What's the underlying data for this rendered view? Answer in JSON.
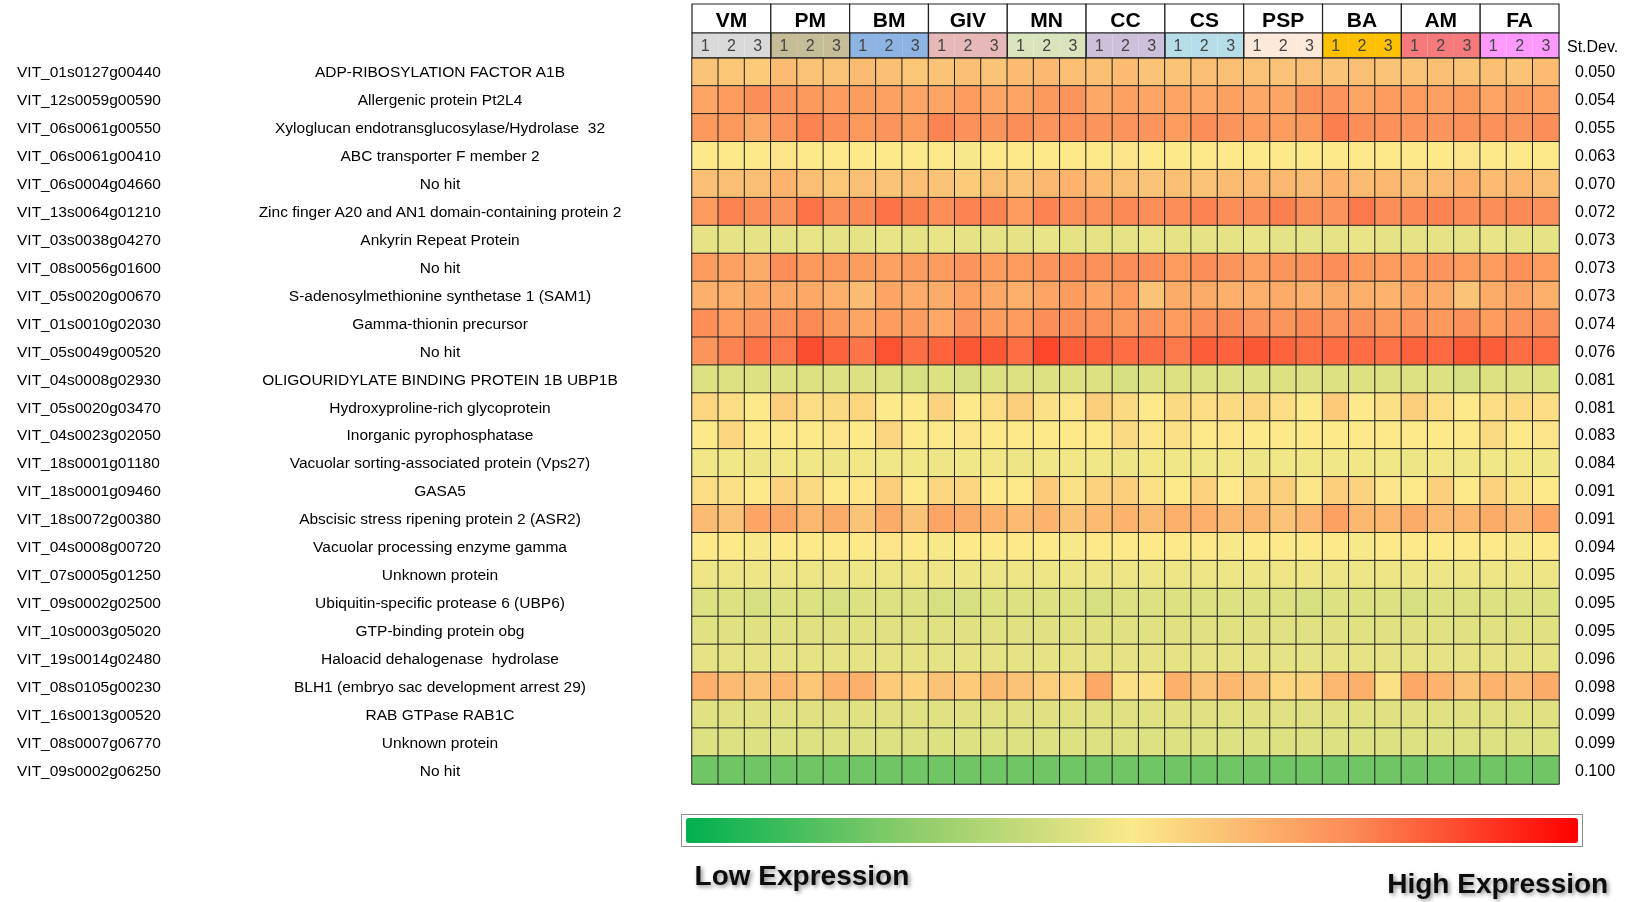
{
  "chart_data": {
    "type": "heatmap",
    "categories": [
      "1",
      "2",
      "3",
      "1",
      "2",
      "3",
      "1",
      "2",
      "3",
      "1",
      "2",
      "3",
      "1",
      "2",
      "3",
      "1",
      "2",
      "3",
      "1",
      "2",
      "3",
      "1",
      "2",
      "3",
      "1",
      "2",
      "3",
      "1",
      "2",
      "3",
      "1",
      "2",
      "3"
    ],
    "y_categories": [
      "ADP-RIBOSYLATION FACTOR A1B",
      "Allergenic protein Pt2L4",
      "Xyloglucan endotransglucosylase/Hydrolase  32",
      "ABC transporter F member 2",
      "No hit",
      "Zinc finger A20 and AN1 domain-containing protein 2",
      "Ankyrin Repeat Protein",
      "No hit",
      "S-adenosylmethionine synthetase 1 (SAM1)",
      "Gamma-thionin precursor",
      "No hit",
      "OLIGOURIDYLATE BINDING PROTEIN 1B UBP1B",
      "Hydroxyproline-rich glycoprotein",
      "Inorganic pyrophosphatase",
      "Vacuolar sorting-associated protein (Vps27)",
      "GASA5",
      "Abscisic stress ripening protein 2 (ASR2)",
      "Vacuolar processing enzyme gamma",
      "Unknown protein",
      "Ubiquitin-specific protease 6 (UBP6)",
      "GTP-binding protein obg",
      "Haloacid dehalogenase  hydrolase",
      "BLH1 (embryo sac development arrest 29)",
      "RAB GTPase RAB1C",
      "Unknown protein",
      "No hit"
    ],
    "y2_categories": [
      "0.050",
      "0.054",
      "0.055",
      "0.063",
      "0.070",
      "0.072",
      "0.073",
      "0.073",
      "0.073",
      "0.074",
      "0.076",
      "0.081",
      "0.081",
      "0.083",
      "0.084",
      "0.091",
      "0.091",
      "0.094",
      "0.095",
      "0.095",
      "0.095",
      "0.096",
      "0.098",
      "0.099",
      "0.099",
      "0.100"
    ],
    "y2label": "St.Dev.",
    "annotations": [
      "VM",
      "PM",
      "BM",
      "GIV",
      "MN",
      "CC",
      "CS",
      "PSP",
      "BA",
      "AM",
      "FA",
      "VIT_01s0127g00440",
      "VIT_12s0059g00590",
      "VIT_06s0061g00550",
      "VIT_06s0061g00410",
      "VIT_06s0004g04660",
      "VIT_13s0064g01210",
      "VIT_03s0038g04270",
      "VIT_08s0056g01600",
      "VIT_05s0020g00670",
      "VIT_01s0010g02030",
      "VIT_05s0049g00520",
      "VIT_04s0008g02930",
      "VIT_05s0020g03470",
      "VIT_04s0023g02050",
      "VIT_18s0001g01180",
      "VIT_18s0001g09460",
      "VIT_18s0072g00380",
      "VIT_04s0008g00720",
      "VIT_07s0005g01250",
      "VIT_09s0002g02500",
      "VIT_10s0003g05020",
      "VIT_19s0014g02480",
      "VIT_08s0105g00230",
      "VIT_16s0013g00520",
      "VIT_08s0007g06770",
      "VIT_09s0002g06250"
    ],
    "clim": [
      0,
      1
    ],
    "cticks": [
      {
        "value": 0.13,
        "label": "Low Expression"
      },
      {
        "value": 0.91,
        "label": "High Expression"
      }
    ],
    "cells": [
      [
        0.6,
        0.59,
        0.58,
        0.62,
        0.6,
        0.6,
        0.62,
        0.61,
        0.59,
        0.6,
        0.61,
        0.6,
        0.62,
        0.63,
        0.61,
        0.61,
        0.62,
        0.6,
        0.6,
        0.61,
        0.61,
        0.6,
        0.6,
        0.61,
        0.6,
        0.61,
        0.6,
        0.6,
        0.61,
        0.6,
        0.61,
        0.6,
        0.62
      ],
      [
        0.68,
        0.7,
        0.74,
        0.72,
        0.71,
        0.7,
        0.7,
        0.69,
        0.68,
        0.68,
        0.7,
        0.68,
        0.68,
        0.71,
        0.72,
        0.67,
        0.69,
        0.68,
        0.68,
        0.67,
        0.69,
        0.67,
        0.68,
        0.73,
        0.72,
        0.68,
        0.7,
        0.7,
        0.69,
        0.71,
        0.68,
        0.7,
        0.69
      ],
      [
        0.71,
        0.71,
        0.67,
        0.72,
        0.76,
        0.74,
        0.71,
        0.72,
        0.7,
        0.76,
        0.73,
        0.72,
        0.74,
        0.72,
        0.73,
        0.72,
        0.72,
        0.72,
        0.7,
        0.74,
        0.72,
        0.7,
        0.7,
        0.71,
        0.77,
        0.74,
        0.73,
        0.72,
        0.72,
        0.73,
        0.73,
        0.72,
        0.74
      ],
      [
        0.5,
        0.5,
        0.5,
        0.51,
        0.5,
        0.5,
        0.5,
        0.5,
        0.5,
        0.5,
        0.49,
        0.5,
        0.5,
        0.5,
        0.5,
        0.5,
        0.51,
        0.5,
        0.5,
        0.5,
        0.5,
        0.5,
        0.5,
        0.5,
        0.5,
        0.5,
        0.5,
        0.5,
        0.5,
        0.51,
        0.5,
        0.5,
        0.5
      ],
      [
        0.61,
        0.61,
        0.61,
        0.64,
        0.61,
        0.59,
        0.61,
        0.6,
        0.61,
        0.6,
        0.58,
        0.61,
        0.6,
        0.63,
        0.64,
        0.62,
        0.61,
        0.6,
        0.61,
        0.6,
        0.62,
        0.62,
        0.63,
        0.62,
        0.64,
        0.62,
        0.63,
        0.61,
        0.62,
        0.64,
        0.62,
        0.63,
        0.61
      ],
      [
        0.7,
        0.76,
        0.74,
        0.72,
        0.79,
        0.74,
        0.75,
        0.79,
        0.77,
        0.74,
        0.76,
        0.76,
        0.7,
        0.76,
        0.73,
        0.73,
        0.75,
        0.74,
        0.74,
        0.76,
        0.74,
        0.74,
        0.77,
        0.74,
        0.72,
        0.78,
        0.74,
        0.75,
        0.76,
        0.74,
        0.74,
        0.75,
        0.73
      ],
      [
        0.45,
        0.45,
        0.45,
        0.45,
        0.46,
        0.45,
        0.45,
        0.46,
        0.45,
        0.46,
        0.45,
        0.45,
        0.45,
        0.46,
        0.45,
        0.45,
        0.45,
        0.46,
        0.45,
        0.45,
        0.45,
        0.46,
        0.45,
        0.45,
        0.45,
        0.46,
        0.45,
        0.45,
        0.45,
        0.45,
        0.46,
        0.45,
        0.45
      ],
      [
        0.7,
        0.69,
        0.66,
        0.74,
        0.71,
        0.71,
        0.7,
        0.69,
        0.7,
        0.7,
        0.72,
        0.7,
        0.7,
        0.72,
        0.74,
        0.73,
        0.74,
        0.74,
        0.7,
        0.74,
        0.72,
        0.69,
        0.72,
        0.73,
        0.74,
        0.71,
        0.7,
        0.7,
        0.72,
        0.7,
        0.7,
        0.73,
        0.7
      ],
      [
        0.65,
        0.65,
        0.67,
        0.67,
        0.67,
        0.65,
        0.62,
        0.68,
        0.66,
        0.66,
        0.69,
        0.67,
        0.65,
        0.68,
        0.7,
        0.68,
        0.7,
        0.6,
        0.66,
        0.66,
        0.65,
        0.65,
        0.66,
        0.65,
        0.66,
        0.65,
        0.64,
        0.67,
        0.66,
        0.6,
        0.66,
        0.68,
        0.65
      ],
      [
        0.74,
        0.7,
        0.72,
        0.73,
        0.75,
        0.71,
        0.68,
        0.7,
        0.7,
        0.67,
        0.72,
        0.7,
        0.7,
        0.74,
        0.74,
        0.73,
        0.71,
        0.72,
        0.7,
        0.74,
        0.75,
        0.72,
        0.72,
        0.75,
        0.72,
        0.73,
        0.71,
        0.72,
        0.71,
        0.73,
        0.7,
        0.72,
        0.73
      ],
      [
        0.72,
        0.76,
        0.79,
        0.78,
        0.86,
        0.82,
        0.79,
        0.85,
        0.8,
        0.82,
        0.84,
        0.84,
        0.8,
        0.87,
        0.83,
        0.82,
        0.8,
        0.8,
        0.78,
        0.83,
        0.82,
        0.84,
        0.82,
        0.8,
        0.8,
        0.8,
        0.79,
        0.82,
        0.81,
        0.84,
        0.83,
        0.8,
        0.8
      ],
      [
        0.43,
        0.43,
        0.43,
        0.43,
        0.43,
        0.43,
        0.43,
        0.43,
        0.42,
        0.43,
        0.42,
        0.43,
        0.43,
        0.43,
        0.43,
        0.43,
        0.42,
        0.43,
        0.43,
        0.43,
        0.43,
        0.43,
        0.43,
        0.43,
        0.43,
        0.43,
        0.43,
        0.43,
        0.43,
        0.42,
        0.43,
        0.43,
        0.43
      ],
      [
        0.55,
        0.53,
        0.5,
        0.57,
        0.53,
        0.54,
        0.55,
        0.5,
        0.5,
        0.56,
        0.5,
        0.53,
        0.57,
        0.52,
        0.51,
        0.57,
        0.54,
        0.5,
        0.54,
        0.53,
        0.54,
        0.55,
        0.53,
        0.5,
        0.58,
        0.5,
        0.52,
        0.57,
        0.53,
        0.5,
        0.53,
        0.54,
        0.53
      ],
      [
        0.5,
        0.55,
        0.5,
        0.5,
        0.5,
        0.51,
        0.5,
        0.55,
        0.5,
        0.5,
        0.51,
        0.5,
        0.5,
        0.5,
        0.5,
        0.5,
        0.54,
        0.51,
        0.52,
        0.5,
        0.51,
        0.5,
        0.5,
        0.5,
        0.5,
        0.5,
        0.5,
        0.5,
        0.5,
        0.5,
        0.54,
        0.5,
        0.51
      ],
      [
        0.48,
        0.48,
        0.47,
        0.48,
        0.48,
        0.47,
        0.48,
        0.48,
        0.48,
        0.47,
        0.48,
        0.48,
        0.47,
        0.48,
        0.48,
        0.48,
        0.47,
        0.48,
        0.48,
        0.48,
        0.48,
        0.47,
        0.48,
        0.48,
        0.48,
        0.48,
        0.48,
        0.47,
        0.48,
        0.48,
        0.48,
        0.48,
        0.48
      ],
      [
        0.53,
        0.52,
        0.5,
        0.56,
        0.54,
        0.5,
        0.51,
        0.57,
        0.5,
        0.55,
        0.55,
        0.5,
        0.5,
        0.58,
        0.52,
        0.56,
        0.57,
        0.52,
        0.5,
        0.56,
        0.5,
        0.55,
        0.57,
        0.51,
        0.57,
        0.56,
        0.51,
        0.5,
        0.57,
        0.5,
        0.56,
        0.52,
        0.5
      ],
      [
        0.62,
        0.6,
        0.68,
        0.68,
        0.63,
        0.66,
        0.6,
        0.66,
        0.6,
        0.68,
        0.66,
        0.64,
        0.62,
        0.64,
        0.6,
        0.62,
        0.64,
        0.62,
        0.65,
        0.65,
        0.63,
        0.63,
        0.6,
        0.63,
        0.69,
        0.63,
        0.63,
        0.66,
        0.62,
        0.63,
        0.66,
        0.63,
        0.68
      ],
      [
        0.5,
        0.5,
        0.49,
        0.5,
        0.5,
        0.5,
        0.5,
        0.51,
        0.5,
        0.49,
        0.5,
        0.5,
        0.5,
        0.5,
        0.49,
        0.5,
        0.5,
        0.5,
        0.5,
        0.5,
        0.49,
        0.5,
        0.5,
        0.5,
        0.5,
        0.49,
        0.5,
        0.5,
        0.5,
        0.5,
        0.5,
        0.49,
        0.5
      ],
      [
        0.47,
        0.47,
        0.47,
        0.47,
        0.47,
        0.47,
        0.47,
        0.47,
        0.47,
        0.47,
        0.47,
        0.47,
        0.47,
        0.47,
        0.47,
        0.47,
        0.47,
        0.47,
        0.47,
        0.47,
        0.47,
        0.47,
        0.47,
        0.47,
        0.47,
        0.47,
        0.47,
        0.47,
        0.47,
        0.47,
        0.47,
        0.47,
        0.47
      ],
      [
        0.43,
        0.43,
        0.42,
        0.43,
        0.43,
        0.42,
        0.43,
        0.43,
        0.43,
        0.42,
        0.42,
        0.43,
        0.43,
        0.43,
        0.43,
        0.42,
        0.43,
        0.43,
        0.43,
        0.43,
        0.43,
        0.43,
        0.43,
        0.42,
        0.43,
        0.43,
        0.43,
        0.42,
        0.43,
        0.43,
        0.43,
        0.43,
        0.43
      ],
      [
        0.44,
        0.44,
        0.44,
        0.44,
        0.44,
        0.44,
        0.44,
        0.44,
        0.44,
        0.44,
        0.44,
        0.44,
        0.44,
        0.44,
        0.44,
        0.44,
        0.44,
        0.44,
        0.44,
        0.44,
        0.44,
        0.44,
        0.44,
        0.44,
        0.44,
        0.44,
        0.44,
        0.44,
        0.44,
        0.44,
        0.44,
        0.44,
        0.44
      ],
      [
        0.45,
        0.45,
        0.45,
        0.45,
        0.45,
        0.45,
        0.45,
        0.45,
        0.45,
        0.45,
        0.45,
        0.45,
        0.45,
        0.45,
        0.45,
        0.45,
        0.45,
        0.45,
        0.45,
        0.45,
        0.45,
        0.45,
        0.45,
        0.45,
        0.45,
        0.45,
        0.45,
        0.45,
        0.45,
        0.45,
        0.45,
        0.45,
        0.45
      ],
      [
        0.65,
        0.62,
        0.6,
        0.63,
        0.59,
        0.64,
        0.65,
        0.58,
        0.56,
        0.6,
        0.58,
        0.62,
        0.6,
        0.57,
        0.56,
        0.67,
        0.52,
        0.52,
        0.65,
        0.6,
        0.63,
        0.6,
        0.55,
        0.56,
        0.63,
        0.65,
        0.52,
        0.67,
        0.64,
        0.6,
        0.64,
        0.62,
        0.66
      ],
      [
        0.44,
        0.44,
        0.44,
        0.44,
        0.44,
        0.44,
        0.44,
        0.44,
        0.44,
        0.44,
        0.44,
        0.44,
        0.44,
        0.44,
        0.44,
        0.44,
        0.44,
        0.44,
        0.44,
        0.44,
        0.44,
        0.44,
        0.44,
        0.44,
        0.44,
        0.44,
        0.44,
        0.44,
        0.44,
        0.44,
        0.44,
        0.44,
        0.44
      ],
      [
        0.43,
        0.43,
        0.43,
        0.43,
        0.43,
        0.43,
        0.43,
        0.43,
        0.43,
        0.43,
        0.43,
        0.43,
        0.43,
        0.43,
        0.43,
        0.43,
        0.43,
        0.43,
        0.43,
        0.43,
        0.43,
        0.43,
        0.43,
        0.43,
        0.43,
        0.43,
        0.43,
        0.43,
        0.43,
        0.43,
        0.43,
        0.43,
        0.43
      ],
      [
        0.2,
        0.2,
        0.2,
        0.2,
        0.2,
        0.2,
        0.2,
        0.2,
        0.2,
        0.2,
        0.2,
        0.2,
        0.2,
        0.2,
        0.2,
        0.2,
        0.2,
        0.2,
        0.2,
        0.2,
        0.2,
        0.2,
        0.2,
        0.2,
        0.2,
        0.2,
        0.2,
        0.2,
        0.2,
        0.2,
        0.2,
        0.2,
        0.2
      ]
    ]
  }
}
